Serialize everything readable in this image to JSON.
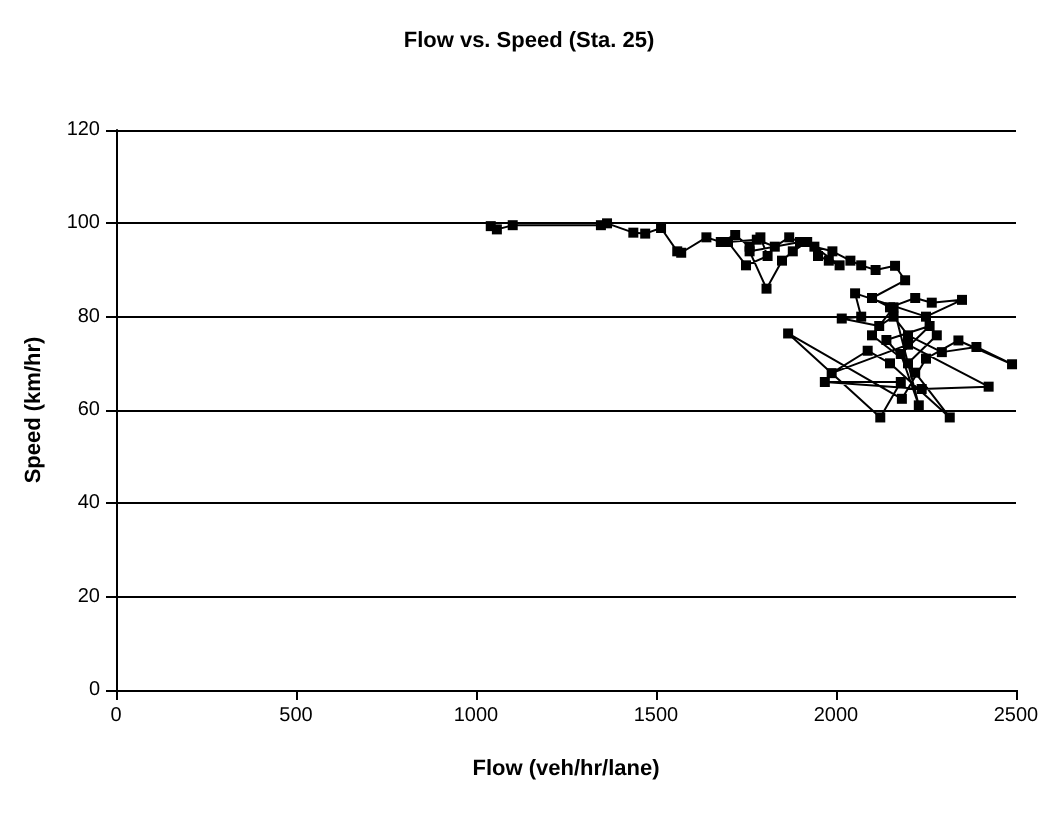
{
  "chart_data": {
    "type": "line",
    "title": "Flow vs. Speed (Sta. 25)",
    "xlabel": "Flow (veh/hr/lane)",
    "ylabel": "Speed (km/hr)",
    "x": [
      1041,
      1058,
      1102,
      1347,
      1364,
      1437,
      1470,
      1514,
      1559,
      1570,
      1640,
      1680,
      1720,
      1760,
      1790,
      1810,
      1750,
      1700,
      1780,
      1830,
      1870,
      1900,
      1760,
      1807,
      1850,
      1880,
      1920,
      1950,
      1980,
      2010,
      1940,
      1990,
      2040,
      2070,
      2110,
      2164,
      2192,
      2100,
      2150,
      2220,
      2266,
      2350,
      2250,
      2053,
      2070,
      2016,
      2120,
      2160,
      2200,
      2294,
      2390,
      2489,
      2340,
      2250,
      2183,
      1867,
      2123,
      2180,
      1969,
      2238,
      2424,
      2200,
      1988,
      2088,
      2150,
      2316,
      2220,
      2140,
      2260,
      2180,
      2230,
      2160,
      2100,
      2200,
      2280
    ],
    "series": [
      {
        "color": "#000000",
        "values": [
          99.4,
          98.7,
          99.6,
          99.6,
          100,
          98,
          97.8,
          99,
          94,
          93.7,
          97,
          96,
          97.5,
          95,
          97,
          93,
          91,
          96,
          96.5,
          95,
          97,
          96,
          94,
          86,
          92,
          94,
          96,
          93,
          92,
          91,
          95,
          94,
          92,
          91,
          90,
          90.9,
          87.8,
          84,
          82,
          84,
          83,
          83.6,
          80,
          85,
          80,
          79.6,
          78,
          80,
          76,
          72.4,
          73.5,
          69.8,
          74.9,
          71,
          62.4,
          76.4,
          58.4,
          66,
          66,
          64.5,
          65,
          74,
          67.9,
          72.7,
          70,
          58.4,
          68,
          75,
          78,
          72,
          61,
          82,
          76,
          70,
          76
        ]
      }
    ],
    "xlim": [
      0,
      2500
    ],
    "xticks": [
      0,
      500,
      1000,
      1500,
      2000,
      2500
    ],
    "ylim": [
      0,
      120
    ],
    "yticks": [
      0,
      20,
      40,
      60,
      80,
      100,
      120
    ],
    "grid": "y",
    "marker": "square",
    "line_style": "solid"
  }
}
